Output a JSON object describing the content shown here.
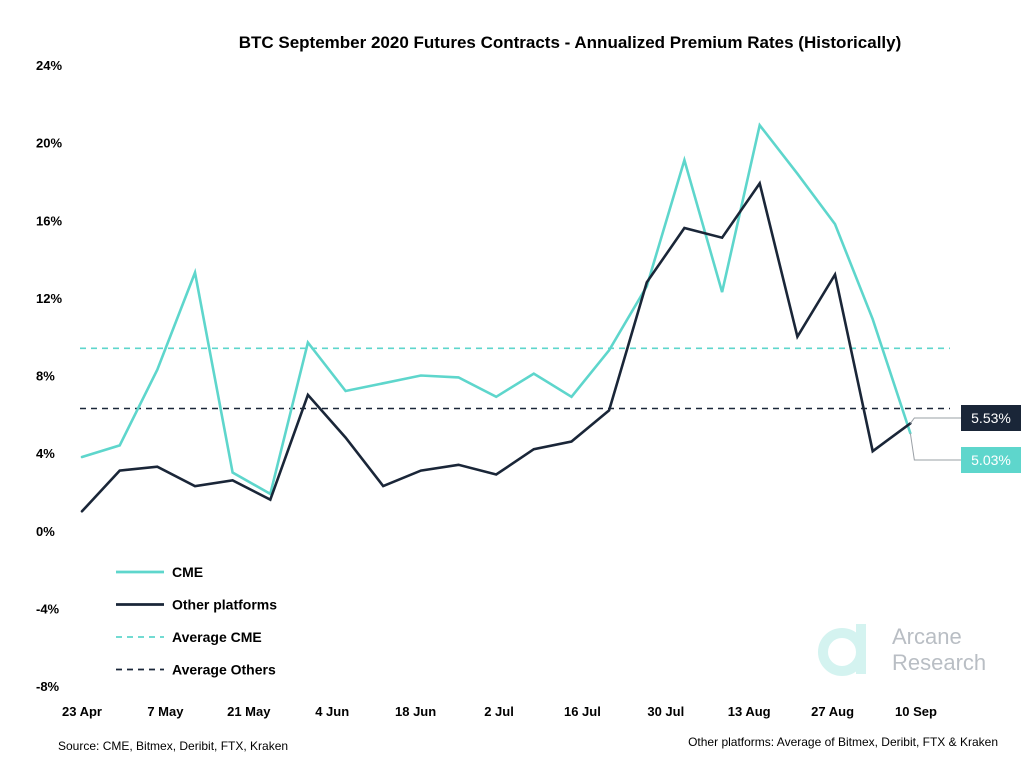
{
  "chart_data": {
    "type": "line",
    "title": "BTC September 2020 Futures Contracts - Annualized Premium Rates (Historically)",
    "xlabel": "",
    "ylabel": "",
    "ylim": [
      -8,
      24
    ],
    "yticks": [
      -8,
      -4,
      0,
      4,
      8,
      12,
      16,
      20,
      24
    ],
    "ytick_labels": [
      "-8%",
      "-4%",
      "0%",
      "4%",
      "8%",
      "12%",
      "16%",
      "20%",
      "24%"
    ],
    "xtick_labels": [
      "23 Apr",
      "7 May",
      "21 May",
      "4 Jun",
      "18 Jun",
      "2 Jul",
      "16 Jul",
      "30 Jul",
      "13 Aug",
      "27 Aug",
      "10 Sep"
    ],
    "x": [
      "2020-04-23",
      "2020-04-30",
      "2020-05-07",
      "2020-05-14",
      "2020-05-19",
      "2020-05-21",
      "2020-05-28",
      "2020-06-04",
      "2020-06-11",
      "2020-06-18",
      "2020-06-25",
      "2020-07-02",
      "2020-07-09",
      "2020-07-16",
      "2020-07-23",
      "2020-07-30",
      "2020-08-06",
      "2020-08-13",
      "2020-08-20",
      "2020-08-27",
      "2020-09-03",
      "2020-09-10",
      "2020-09-17",
      "2020-09-22"
    ],
    "grid": false,
    "legend_position": "lower-left",
    "series": [
      {
        "name": "CME",
        "color": "#5ed6cc",
        "style": "solid",
        "values": [
          3.8,
          4.4,
          8.3,
          13.3,
          3.0,
          1.9,
          9.7,
          7.2,
          7.6,
          8.0,
          7.9,
          6.9,
          8.1,
          6.9,
          9.3,
          12.6,
          19.1,
          12.3,
          20.9,
          18.4,
          15.8,
          10.9,
          5.03,
          null
        ],
        "end_label": "5.03%"
      },
      {
        "name": "Other platforms",
        "color": "#1a2638",
        "style": "solid",
        "values": [
          1.0,
          3.1,
          3.3,
          2.3,
          2.6,
          1.6,
          7.0,
          4.8,
          2.3,
          3.1,
          3.4,
          2.9,
          4.2,
          4.6,
          6.2,
          12.8,
          15.6,
          15.1,
          17.9,
          10.0,
          13.2,
          4.1,
          5.53,
          null
        ],
        "end_label": "5.53%"
      },
      {
        "name": "Average CME",
        "color": "#5ed6cc",
        "style": "dashed",
        "constant": 9.4
      },
      {
        "name": "Average Others",
        "color": "#1a2638",
        "style": "dashed",
        "constant": 6.3
      }
    ],
    "annotations": {
      "source": "Source: CME, Bitmex, Deribit, FTX, Kraken",
      "note": "Other platforms: Average of Bitmex, Deribit, FTX & Kraken"
    }
  },
  "brand": {
    "line1": "Arcane",
    "line2": "Research",
    "logo_color": "#d4f3f0",
    "text_color": "#b9bec4"
  }
}
